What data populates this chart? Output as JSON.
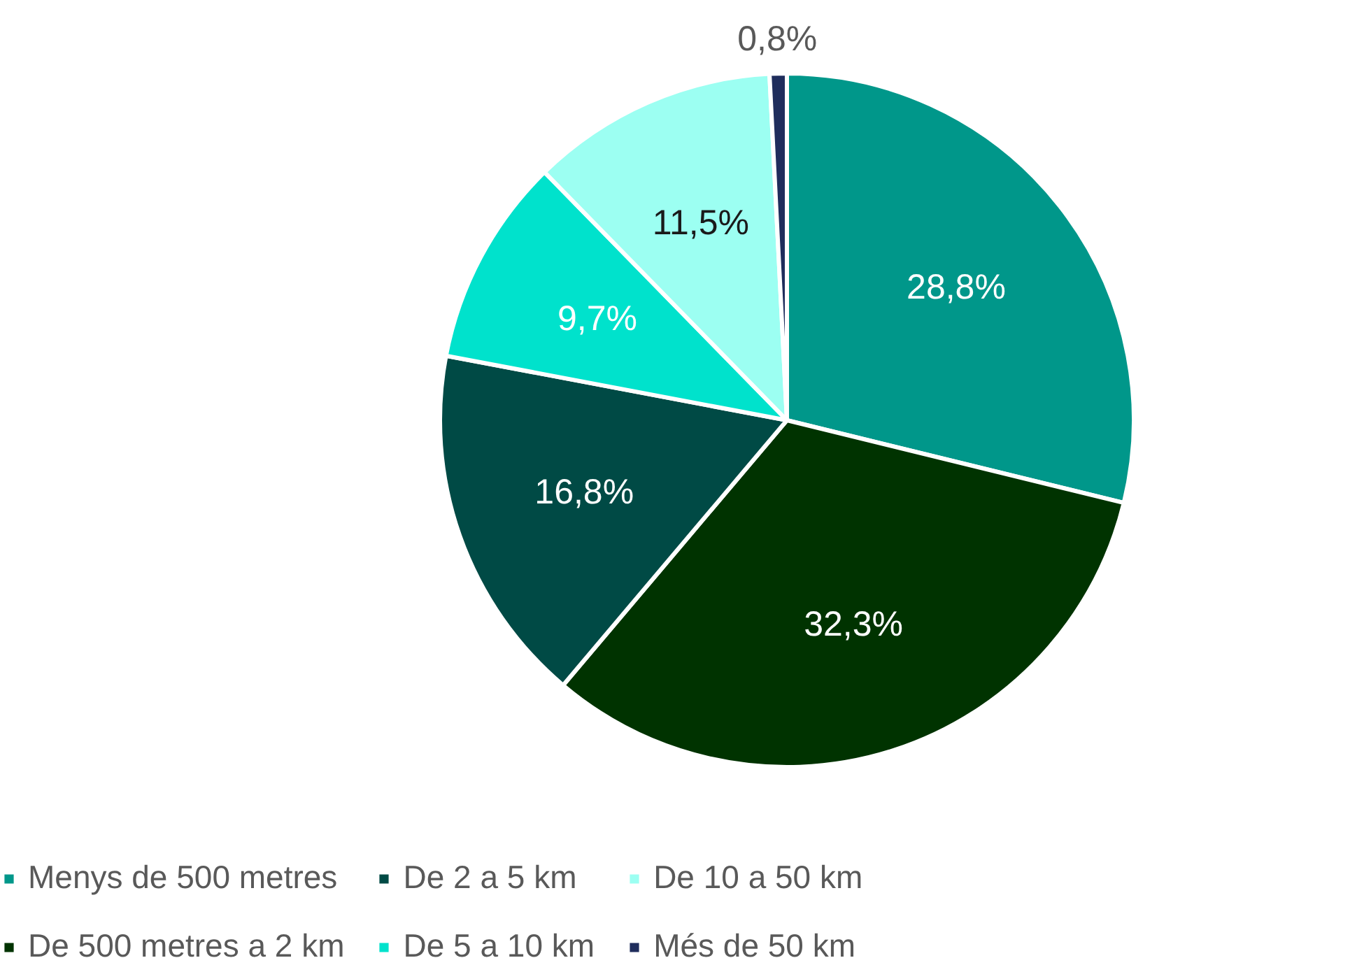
{
  "chart_data": {
    "type": "pie",
    "categories": [
      "Menys de 500 metres",
      "De 500 metres a 2 km",
      "De 2 a 5 km",
      "De 5 a 10 km",
      "De 10 a 50 km",
      "Més de 50 km"
    ],
    "values": [
      28.8,
      32.3,
      16.8,
      9.7,
      11.5,
      0.8
    ],
    "colors": [
      "#00978a",
      "#003300",
      "#004a45",
      "#00e2cc",
      "#9cfff2",
      "#1f2d5c"
    ],
    "value_labels": [
      "28,8%",
      "32,3%",
      "16,8%",
      "9,7%",
      "11,5%",
      "0,8%"
    ],
    "legend": "bottom"
  }
}
